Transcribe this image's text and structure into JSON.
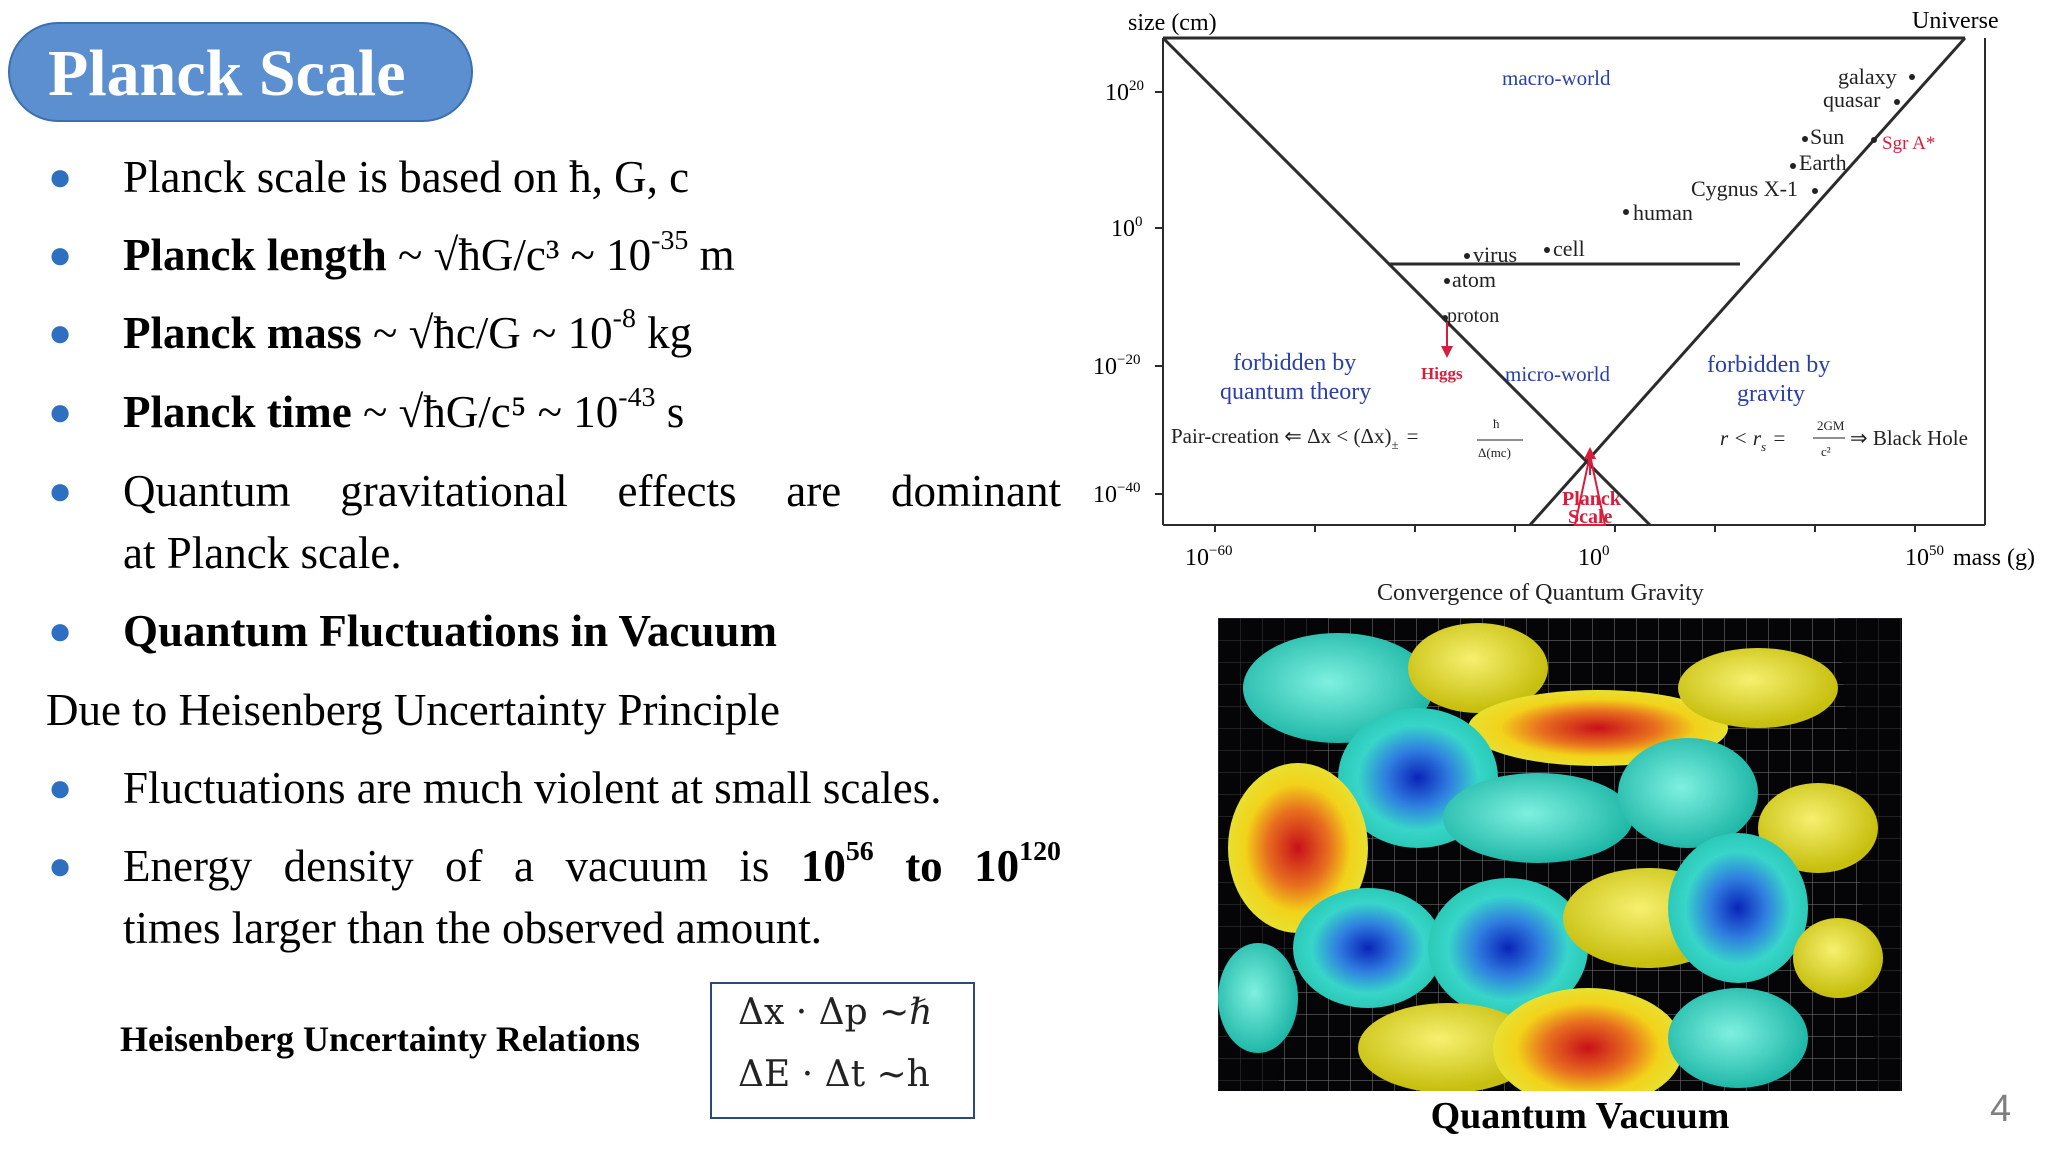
{
  "slide": {
    "title": "Planck Scale",
    "page_number": "4",
    "accent_color": "#5b8fd0",
    "bullet_color": "#2e6fc0"
  },
  "bullets": {
    "b1": {
      "text": "Planck scale is based on ħ, G, c"
    },
    "b2": {
      "term": "Planck length",
      "formula": " ~ √ħG/c³ ~ 10",
      "exp": "-35",
      "unit": " m"
    },
    "b3": {
      "term": "Planck mass",
      "formula": " ~ √ħc/G ~ 10",
      "exp": "-8",
      "unit": " kg"
    },
    "b4": {
      "term": "Planck time",
      "formula": " ~ √ħG/c⁵ ~ 10",
      "exp": "-43",
      "unit": " s"
    },
    "b5": {
      "line1": "Quantum gravitational effects are dominant",
      "line2": "at Planck scale."
    },
    "b6": {
      "text": "Quantum Fluctuations in Vacuum"
    },
    "subheading": "Due to Heisenberg Uncertainty Principle",
    "b7": {
      "text": "Fluctuations are much violent at small scales."
    },
    "b8": {
      "pre": "Energy density of a vacuum is ",
      "base1": "10",
      "exp1": "56",
      "mid": " to ",
      "base2": "10",
      "exp2": "120",
      "line2": "times larger than the observed amount."
    }
  },
  "relations": {
    "label": "Heisenberg Uncertainty Relations",
    "eq1": "Δx · Δp ~ℏ",
    "eq2": "ΔE · Δt ~h"
  },
  "vacuum_figure": {
    "caption": "Quantum Vacuum"
  },
  "diagram": {
    "y_axis_label": "size  (cm)",
    "top_right_label": "Universe",
    "y_ticks": [
      {
        "base": "10",
        "exp": "20"
      },
      {
        "base": "10",
        "exp": "0"
      },
      {
        "base": "10",
        "exp": "−20"
      },
      {
        "base": "10",
        "exp": "−40"
      }
    ],
    "x_ticks": [
      {
        "base": "10",
        "exp": "−60"
      },
      {
        "base": "10",
        "exp": "0"
      },
      {
        "base": "10",
        "exp": "50"
      }
    ],
    "x_axis_label": "mass (g)",
    "caption": "Convergence of Quantum Gravity",
    "regions": {
      "macro": "macro-world",
      "micro": "micro-world",
      "forbidden_quantum_1": "forbidden by",
      "forbidden_quantum_2": "quantum theory",
      "forbidden_gravity_1": "forbidden by",
      "forbidden_gravity_2": "gravity"
    },
    "objects": {
      "galaxy": "galaxy",
      "quasar": "quasar",
      "sun": "Sun",
      "sgr": "Sgr A*",
      "earth": "Earth",
      "cygnus": "Cygnus X-1",
      "human": "human",
      "virus": "virus",
      "cell": "cell",
      "atom": "atom",
      "proton": "proton",
      "higgs": "Higgs",
      "planck1": "Planck",
      "planck2": "Scale"
    },
    "formulas": {
      "pair_creation": "Pair-creation ⇐ Δx < (Δx)",
      "pair_sub": "±",
      "pair_eq": "=",
      "pair_num": "ħ",
      "pair_den": "Δ(mc)",
      "black_hole_left": "r < r",
      "black_hole_sub": "s",
      "black_hole_eq": "=",
      "black_hole_num": "2GM",
      "black_hole_den": "c²",
      "black_hole_right": "⇒ Black Hole"
    },
    "colors": {
      "blue_label": "#2a3fa8",
      "red_label": "#d81e3c",
      "line": "#2b2b2b"
    }
  }
}
